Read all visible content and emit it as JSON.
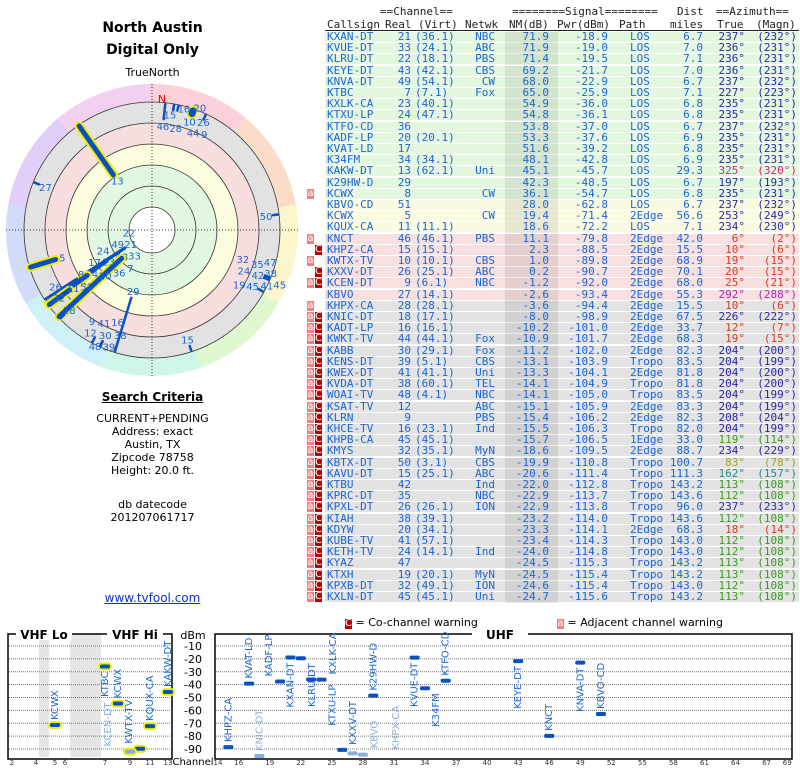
{
  "header": {
    "title1": "North Austin",
    "title2": "Digital Only",
    "true_north": "TrueNorth",
    "north_mark": "N"
  },
  "criteria": {
    "heading": "Search Criteria",
    "lines": [
      "CURRENT+PENDING",
      "Address: exact",
      "Austin, TX",
      "Zipcode 78758",
      "Height: 20.0 ft."
    ],
    "db_label": "db datecode",
    "db_value": "201207061717"
  },
  "link": "www.tvfool.com",
  "table_headers": {
    "channel_group": "==Channel==",
    "signal_group": "========Signal========",
    "dist_top": "Dist",
    "azimuth_group": "==Azimuth==",
    "callsign": "Callsign",
    "real": "Real",
    "virt": "(Virt)",
    "netwk": "Netwk",
    "nm": "NM(dB)",
    "pwr": "Pwr(dBm)",
    "path": "Path",
    "dist": "miles",
    "true": "True",
    "magn": "(Magn)"
  },
  "colors": {
    "green": "#e4f8e0",
    "yellow": "#fbfbe2",
    "pink": "#f8e0e0",
    "gray": "#e3e3e3",
    "az": {
      "b": "#2a2aa0",
      "r": "#d83a20",
      "m": "#c82878",
      "p": "#a828a8",
      "g": "#3a9a20",
      "t": "#208a8a",
      "o": "#a0a020"
    }
  },
  "stations": [
    {
      "call": "KXAN-DT",
      "ch": "21",
      "virt": "(36.1)",
      "net": "NBC",
      "nm": "71.9",
      "pwr": "-18.9",
      "path": "LOS",
      "dist": "6.7",
      "az": "237°",
      "mag": "(232°)",
      "band": "green",
      "azc": "b",
      "warn": ""
    },
    {
      "call": "KVUE-DT",
      "ch": "33",
      "virt": "(24.1)",
      "net": "ABC",
      "nm": "71.9",
      "pwr": "-19.0",
      "path": "LOS",
      "dist": "7.0",
      "az": "236°",
      "mag": "(231°)",
      "band": "green",
      "azc": "b",
      "warn": ""
    },
    {
      "call": "KLRU-DT",
      "ch": "22",
      "virt": "(18.1)",
      "net": "PBS",
      "nm": "71.4",
      "pwr": "-19.5",
      "path": "LOS",
      "dist": "7.1",
      "az": "236°",
      "mag": "(231°)",
      "band": "green",
      "azc": "b",
      "warn": ""
    },
    {
      "call": "KEYE-DT",
      "ch": "43",
      "virt": "(42.1)",
      "net": "CBS",
      "nm": "69.2",
      "pwr": "-21.7",
      "path": "LOS",
      "dist": "7.0",
      "az": "236°",
      "mag": "(231°)",
      "band": "green",
      "azc": "b",
      "warn": ""
    },
    {
      "call": "KNVA-DT",
      "ch": "49",
      "virt": "(54.1)",
      "net": "CW",
      "nm": "68.0",
      "pwr": "-22.9",
      "path": "LOS",
      "dist": "6.7",
      "az": "237°",
      "mag": "(232°)",
      "band": "green",
      "azc": "b",
      "warn": ""
    },
    {
      "call": "KTBC",
      "ch": "7",
      "virt": "(7.1)",
      "net": "Fox",
      "nm": "65.0",
      "pwr": "-25.9",
      "path": "LOS",
      "dist": "7.1",
      "az": "227°",
      "mag": "(223°)",
      "band": "green",
      "azc": "b",
      "warn": ""
    },
    {
      "call": "KXLK-CA",
      "ch": "23",
      "virt": "(40.1)",
      "net": "",
      "nm": "54.9",
      "pwr": "-36.0",
      "path": "LOS",
      "dist": "6.8",
      "az": "235°",
      "mag": "(231°)",
      "band": "green",
      "azc": "b",
      "warn": ""
    },
    {
      "call": "KTXU-LP",
      "ch": "24",
      "virt": "(47.1)",
      "net": "",
      "nm": "54.8",
      "pwr": "-36.1",
      "path": "LOS",
      "dist": "6.8",
      "az": "235°",
      "mag": "(231°)",
      "band": "green",
      "azc": "b",
      "warn": ""
    },
    {
      "call": "KTFO-CD",
      "ch": "36",
      "virt": "",
      "net": "",
      "nm": "53.8",
      "pwr": "-37.0",
      "path": "LOS",
      "dist": "6.7",
      "az": "237°",
      "mag": "(232°)",
      "band": "green",
      "azc": "b",
      "warn": ""
    },
    {
      "call": "KADF-LP",
      "ch": "20",
      "virt": "(20.1)",
      "net": "",
      "nm": "53.3",
      "pwr": "-37.6",
      "path": "LOS",
      "dist": "6.9",
      "az": "235°",
      "mag": "(231°)",
      "band": "green",
      "azc": "b",
      "warn": ""
    },
    {
      "call": "KVAT-LD",
      "ch": "17",
      "virt": "",
      "net": "",
      "nm": "51.6",
      "pwr": "-39.2",
      "path": "LOS",
      "dist": "6.8",
      "az": "235°",
      "mag": "(231°)",
      "band": "green",
      "azc": "b",
      "warn": ""
    },
    {
      "call": "K34FM",
      "ch": "34",
      "virt": "(34.1)",
      "net": "",
      "nm": "48.1",
      "pwr": "-42.8",
      "path": "LOS",
      "dist": "6.9",
      "az": "235°",
      "mag": "(231°)",
      "band": "green",
      "azc": "b",
      "warn": ""
    },
    {
      "call": "KAKW-DT",
      "ch": "13",
      "virt": "(62.1)",
      "net": "Uni",
      "nm": "45.1",
      "pwr": "-45.7",
      "path": "LOS",
      "dist": "29.3",
      "az": "325°",
      "mag": "(320°)",
      "band": "green",
      "azc": "m",
      "warn": ""
    },
    {
      "call": "K29HW-D",
      "ch": "29",
      "virt": "",
      "net": "",
      "nm": "42.3",
      "pwr": "-48.5",
      "path": "LOS",
      "dist": "6.7",
      "az": "197°",
      "mag": "(193°)",
      "band": "green",
      "azc": "b",
      "warn": ""
    },
    {
      "call": "KCWX",
      "ch": "8",
      "virt": "",
      "net": "CW",
      "nm": "36.1",
      "pwr": "-54.7",
      "path": "LOS",
      "dist": "6.8",
      "az": "235°",
      "mag": "(231°)",
      "band": "green",
      "azc": "b",
      "warn": "a"
    },
    {
      "call": "KBVO-CD",
      "ch": "51",
      "virt": "",
      "net": "",
      "nm": "28.0",
      "pwr": "-62.8",
      "path": "LOS",
      "dist": "6.7",
      "az": "237°",
      "mag": "(232°)",
      "band": "yellow",
      "azc": "b",
      "warn": ""
    },
    {
      "call": "KCWX",
      "ch": "5",
      "virt": "",
      "net": "CW",
      "nm": "19.4",
      "pwr": "-71.4",
      "path": "2Edge",
      "dist": "56.6",
      "az": "253°",
      "mag": "(249°)",
      "band": "yellow",
      "azc": "b",
      "warn": ""
    },
    {
      "call": "KQUX-CA",
      "ch": "11",
      "virt": "(11.1)",
      "net": "",
      "nm": "18.6",
      "pwr": "-72.2",
      "path": "LOS",
      "dist": "7.1",
      "az": "234°",
      "mag": "(230°)",
      "band": "yellow",
      "azc": "b",
      "warn": ""
    },
    {
      "call": "KNCT",
      "ch": "46",
      "virt": "(46.1)",
      "net": "PBS",
      "nm": "11.1",
      "pwr": "-79.8",
      "path": "2Edge",
      "dist": "42.0",
      "az": "6°",
      "mag": "(2°)",
      "band": "pink",
      "azc": "r",
      "warn": "a"
    },
    {
      "call": "KHPZ-CA",
      "ch": "15",
      "virt": "(15.1)",
      "net": "",
      "nm": "2.3",
      "pwr": "-88.5",
      "path": "2Edge",
      "dist": "15.5",
      "az": "10°",
      "mag": "(6°)",
      "band": "pink",
      "azc": "r",
      "warn": "C"
    },
    {
      "call": "KWTX-TV",
      "ch": "10",
      "virt": "(10.1)",
      "net": "CBS",
      "nm": "1.0",
      "pwr": "-89.8",
      "path": "2Edge",
      "dist": "68.9",
      "az": "19°",
      "mag": "(15°)",
      "band": "pink",
      "azc": "r",
      "warn": "a"
    },
    {
      "call": "KXXV-DT",
      "ch": "26",
      "virt": "(25.1)",
      "net": "ABC",
      "nm": "0.2",
      "pwr": "-90.7",
      "path": "2Edge",
      "dist": "70.1",
      "az": "20°",
      "mag": "(15°)",
      "band": "pink",
      "azc": "r",
      "warn": "C"
    },
    {
      "call": "KCEN-DT",
      "ch": "9",
      "virt": "(6.1)",
      "net": "NBC",
      "nm": "-1.2",
      "pwr": "-92.0",
      "path": "2Edge",
      "dist": "68.0",
      "az": "25°",
      "mag": "(21°)",
      "band": "pink",
      "azc": "r",
      "warn": "aC"
    },
    {
      "call": "KBVO",
      "ch": "27",
      "virt": "(14.1)",
      "net": "",
      "nm": "-2.6",
      "pwr": "-93.4",
      "path": "2Edge",
      "dist": "55.3",
      "az": "292°",
      "mag": "(288°)",
      "band": "pink",
      "azc": "p",
      "warn": ""
    },
    {
      "call": "KHPX-CA",
      "ch": "28",
      "virt": "(28.1)",
      "net": "",
      "nm": "-3.6",
      "pwr": "-94.4",
      "path": "2Edge",
      "dist": "15.5",
      "az": "10°",
      "mag": "(6°)",
      "band": "gray",
      "azc": "r",
      "warn": "a"
    },
    {
      "call": "KNIC-DT",
      "ch": "18",
      "virt": "(17.1)",
      "net": "",
      "nm": "-8.0",
      "pwr": "-98.9",
      "path": "2Edge",
      "dist": "67.5",
      "az": "226°",
      "mag": "(222°)",
      "band": "gray",
      "azc": "b",
      "warn": "aC"
    },
    {
      "call": "KADT-LP",
      "ch": "16",
      "virt": "(16.1)",
      "net": "",
      "nm": "-10.2",
      "pwr": "-101.0",
      "path": "2Edge",
      "dist": "33.7",
      "az": "12°",
      "mag": "(7°)",
      "band": "gray",
      "azc": "r",
      "warn": "aC"
    },
    {
      "call": "KWKT-TV",
      "ch": "44",
      "virt": "(44.1)",
      "net": "Fox",
      "nm": "-10.9",
      "pwr": "-101.7",
      "path": "2Edge",
      "dist": "68.3",
      "az": "19°",
      "mag": "(15°)",
      "band": "gray",
      "azc": "r",
      "warn": "aC"
    },
    {
      "call": "KABB",
      "ch": "30",
      "virt": "(29.1)",
      "net": "Fox",
      "nm": "-11.2",
      "pwr": "-102.0",
      "path": "2Edge",
      "dist": "82.3",
      "az": "204°",
      "mag": "(200°)",
      "band": "gray",
      "azc": "b",
      "warn": "aC"
    },
    {
      "call": "KENS-DT",
      "ch": "39",
      "virt": "(5.1)",
      "net": "CBS",
      "nm": "-13.1",
      "pwr": "-103.9",
      "path": "Tropo",
      "dist": "83.5",
      "az": "204°",
      "mag": "(199°)",
      "band": "gray",
      "azc": "b",
      "warn": "aC"
    },
    {
      "call": "KWEX-DT",
      "ch": "41",
      "virt": "(41.1)",
      "net": "Uni",
      "nm": "-13.3",
      "pwr": "-104.1",
      "path": "2Edge",
      "dist": "81.8",
      "az": "204°",
      "mag": "(200°)",
      "band": "gray",
      "azc": "b",
      "warn": "aC"
    },
    {
      "call": "KVDA-DT",
      "ch": "38",
      "virt": "(60.1)",
      "net": "TEL",
      "nm": "-14.1",
      "pwr": "-104.9",
      "path": "Tropo",
      "dist": "81.8",
      "az": "204°",
      "mag": "(200°)",
      "band": "gray",
      "azc": "b",
      "warn": "aC"
    },
    {
      "call": "WOAI-TV",
      "ch": "48",
      "virt": "(4.1)",
      "net": "NBC",
      "nm": "-14.1",
      "pwr": "-105.0",
      "path": "Tropo",
      "dist": "83.5",
      "az": "204°",
      "mag": "(199°)",
      "band": "gray",
      "azc": "b",
      "warn": "aC"
    },
    {
      "call": "KSAT-TV",
      "ch": "12",
      "virt": "",
      "net": "ABC",
      "nm": "-15.1",
      "pwr": "-105.9",
      "path": "2Edge",
      "dist": "83.3",
      "az": "204°",
      "mag": "(199°)",
      "band": "gray",
      "azc": "b",
      "warn": "aC"
    },
    {
      "call": "KLRN",
      "ch": "9",
      "virt": "",
      "net": "PBS",
      "nm": "-15.4",
      "pwr": "-106.2",
      "path": "2Edge",
      "dist": "82.3",
      "az": "208°",
      "mag": "(204°)",
      "band": "gray",
      "azc": "b",
      "warn": "aC"
    },
    {
      "call": "KHCE-TV",
      "ch": "16",
      "virt": "(23.1)",
      "net": "Ind",
      "nm": "-15.5",
      "pwr": "-106.3",
      "path": "Tropo",
      "dist": "82.0",
      "az": "204°",
      "mag": "(199°)",
      "band": "gray",
      "azc": "b",
      "warn": "aC"
    },
    {
      "call": "KHPB-CA",
      "ch": "45",
      "virt": "(45.1)",
      "net": "",
      "nm": "-15.7",
      "pwr": "-106.5",
      "path": "1Edge",
      "dist": "33.0",
      "az": "119°",
      "mag": "(114°)",
      "band": "gray",
      "azc": "g",
      "warn": "aC"
    },
    {
      "call": "KMYS",
      "ch": "32",
      "virt": "(35.1)",
      "net": "MyN",
      "nm": "-18.6",
      "pwr": "-109.5",
      "path": "2Edge",
      "dist": "88.7",
      "az": "234°",
      "mag": "(229°)",
      "band": "gray",
      "azc": "b",
      "warn": "aC"
    },
    {
      "call": "KBTX-DT",
      "ch": "50",
      "virt": "(3.1)",
      "net": "CBS",
      "nm": "-19.9",
      "pwr": "-110.8",
      "path": "Tropo",
      "dist": "100.7",
      "az": "83°",
      "mag": "(78°)",
      "band": "gray",
      "azc": "o",
      "warn": "aC"
    },
    {
      "call": "KAVU-DT",
      "ch": "15",
      "virt": "(25.1)",
      "net": "ABC",
      "nm": "-20.6",
      "pwr": "-111.4",
      "path": "Tropo",
      "dist": "111.3",
      "az": "162°",
      "mag": "(157°)",
      "band": "gray",
      "azc": "t",
      "warn": "aC"
    },
    {
      "call": "KTBU",
      "ch": "42",
      "virt": "",
      "net": "Ind",
      "nm": "-22.0",
      "pwr": "-112.8",
      "path": "Tropo",
      "dist": "143.2",
      "az": "113°",
      "mag": "(108°)",
      "band": "gray",
      "azc": "g",
      "warn": "aC"
    },
    {
      "call": "KPRC-DT",
      "ch": "35",
      "virt": "",
      "net": "NBC",
      "nm": "-22.9",
      "pwr": "-113.7",
      "path": "Tropo",
      "dist": "143.6",
      "az": "112°",
      "mag": "(108°)",
      "band": "gray",
      "azc": "g",
      "warn": "aC"
    },
    {
      "call": "KPXL-DT",
      "ch": "26",
      "virt": "(26.1)",
      "net": "ION",
      "nm": "-22.9",
      "pwr": "-113.8",
      "path": "Tropo",
      "dist": "96.0",
      "az": "237°",
      "mag": "(233°)",
      "band": "gray",
      "azc": "b",
      "warn": "aC"
    },
    {
      "call": "KIAH",
      "ch": "38",
      "virt": "(39.1)",
      "net": "",
      "nm": "-23.2",
      "pwr": "-114.0",
      "path": "Tropo",
      "dist": "143.6",
      "az": "112°",
      "mag": "(108°)",
      "band": "gray",
      "azc": "g",
      "warn": "aC"
    },
    {
      "call": "KDYW",
      "ch": "20",
      "virt": "(34.1)",
      "net": "",
      "nm": "-23.3",
      "pwr": "-114.1",
      "path": "2Edge",
      "dist": "68.3",
      "az": "18°",
      "mag": "(14°)",
      "band": "gray",
      "azc": "r",
      "warn": "aC"
    },
    {
      "call": "KUBE-TV",
      "ch": "41",
      "virt": "(57.1)",
      "net": "",
      "nm": "-23.4",
      "pwr": "-114.3",
      "path": "Tropo",
      "dist": "143.0",
      "az": "112°",
      "mag": "(108°)",
      "band": "gray",
      "azc": "g",
      "warn": "aC"
    },
    {
      "call": "KETH-TV",
      "ch": "24",
      "virt": "(14.1)",
      "net": "Ind",
      "nm": "-24.0",
      "pwr": "-114.8",
      "path": "Tropo",
      "dist": "143.0",
      "az": "112°",
      "mag": "(108°)",
      "band": "gray",
      "azc": "g",
      "warn": "aC"
    },
    {
      "call": "KYAZ",
      "ch": "47",
      "virt": "",
      "net": "",
      "nm": "-24.5",
      "pwr": "-115.3",
      "path": "Tropo",
      "dist": "143.2",
      "az": "113°",
      "mag": "(108°)",
      "band": "gray",
      "azc": "g",
      "warn": "aC"
    },
    {
      "call": "KTXH",
      "ch": "19",
      "virt": "(20.1)",
      "net": "MyN",
      "nm": "-24.5",
      "pwr": "-115.4",
      "path": "Tropo",
      "dist": "143.2",
      "az": "113°",
      "mag": "(108°)",
      "band": "gray",
      "azc": "g",
      "warn": "aC"
    },
    {
      "call": "KPXB-DT",
      "ch": "32",
      "virt": "(49.1)",
      "net": "ION",
      "nm": "-24.6",
      "pwr": "-115.4",
      "path": "Tropo",
      "dist": "143.0",
      "az": "112°",
      "mag": "(108°)",
      "band": "gray",
      "azc": "g",
      "warn": "aC"
    },
    {
      "call": "KXLN-DT",
      "ch": "45",
      "virt": "(45.1)",
      "net": "Uni",
      "nm": "-24.7",
      "pwr": "-115.6",
      "path": "Tropo",
      "dist": "143.2",
      "az": "113°",
      "mag": "(108°)",
      "band": "gray",
      "azc": "g",
      "warn": "aC"
    }
  ],
  "legend": {
    "co_icon": "C",
    "co_text": "= Co-channel warning",
    "adj_icon": "a",
    "adj_text": "= Adjacent channel warning"
  },
  "spectrum": {
    "vhf_lo": "VHF Lo",
    "vhf_hi": "VHF Hi",
    "uhf": "UHF",
    "unit": "dBm",
    "channel_label": "Channel",
    "dbm_ticks": [
      "-10",
      "-20",
      "-30",
      "-40",
      "-50",
      "-60",
      "-70",
      "-80",
      "-90"
    ],
    "vhf_ticks": [
      "2",
      "4",
      "5",
      "6",
      "7",
      "9",
      "11",
      "13"
    ],
    "uhf_ticks": [
      "14",
      "16",
      "19",
      "22",
      "25",
      "28",
      "31",
      "34",
      "37",
      "40",
      "43",
      "46",
      "49",
      "52",
      "55",
      "58",
      "61",
      "64",
      "67",
      "69"
    ]
  }
}
